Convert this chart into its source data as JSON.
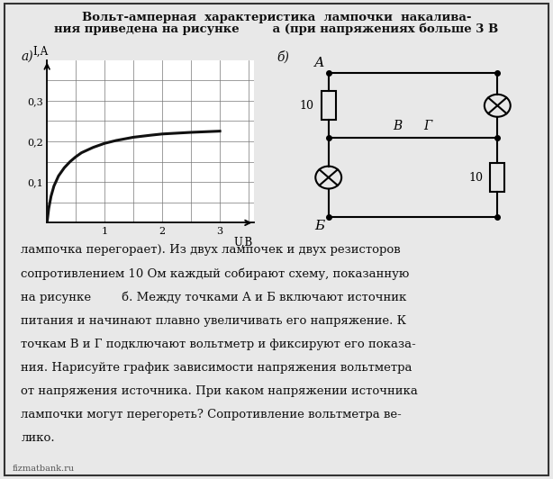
{
  "title_line1": "Вольт-амперная  характеристика  лампочки  накалива-",
  "title_line2": "ния приведена на рисунке        а (при напряжениях больше 3 В",
  "label_a": "а)",
  "label_b": "б)",
  "graph_xlabel": "U,В",
  "graph_ylabel": "I,А",
  "x_ticks": [
    1,
    2,
    3
  ],
  "y_ticks": [
    0.1,
    0.2,
    0.3
  ],
  "curve_x": [
    0.0,
    0.03,
    0.07,
    0.12,
    0.2,
    0.3,
    0.4,
    0.5,
    0.6,
    0.8,
    1.0,
    1.2,
    1.5,
    1.8,
    2.0,
    2.5,
    3.0
  ],
  "curve_y": [
    0.0,
    0.035,
    0.065,
    0.09,
    0.115,
    0.135,
    0.15,
    0.162,
    0.172,
    0.185,
    0.195,
    0.202,
    0.21,
    0.215,
    0.218,
    0.222,
    0.225
  ],
  "grid_color": "#777777",
  "curve_color": "#111111",
  "page_bg": "#e8e8e8",
  "box_bg": "#ffffff",
  "text_color": "#111111",
  "bottom_text_lines": [
    "лампочка перегорает). Из двух лампочек и двух резисторов",
    "сопротивлением 10 Ом каждый собирают схему, показанную",
    "на рисунке        б. Между точками А и Б включают источник",
    "питания и начинают плавно увеличивать его напряжение. К",
    "точкам В и Г подключают вольтметр и фиксируют его показа-",
    "ния. Нарисуйте график зависимости напряжения вольтметра",
    "от напряжения источника. При каком напряжении источника",
    "лампочки могут перегореть? Сопротивление вольтметра ве-",
    "лико."
  ],
  "footer": "fizmatbank.ru"
}
